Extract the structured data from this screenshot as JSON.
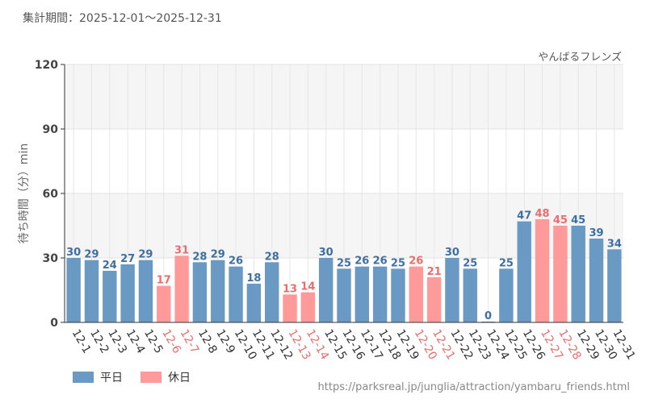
{
  "header": {
    "period": "集計期間：2025-12-01～2025-12-31"
  },
  "footer": {
    "source": "https://parksreal.jp/junglia/attraction/yambaru_friends.html"
  },
  "colors": {
    "weekday": "#6a9ac4",
    "holiday": "#ff9a9a",
    "weekday_label": "#3f6f9f",
    "holiday_label": "#e76e6e"
  },
  "chart_data": {
    "type": "bar",
    "title": "やんばるフレンズ",
    "xlabel": "",
    "ylabel": "待ち時間（分）min",
    "ylim": [
      0,
      120
    ],
    "yticks": [
      0,
      30,
      60,
      90,
      120
    ],
    "grid": true,
    "legend_position": "bottom-left",
    "legend": [
      {
        "name": "平日",
        "key": "weekday"
      },
      {
        "name": "休日",
        "key": "holiday"
      }
    ],
    "categories": [
      "12-1",
      "12-2",
      "12-3",
      "12-4",
      "12-5",
      "12-6",
      "12-7",
      "12-8",
      "12-9",
      "12-10",
      "12-11",
      "12-12",
      "12-13",
      "12-14",
      "12-15",
      "12-16",
      "12-17",
      "12-18",
      "12-19",
      "12-20",
      "12-21",
      "12-22",
      "12-23",
      "12-24",
      "12-25",
      "12-26",
      "12-27",
      "12-28",
      "12-29",
      "12-30",
      "12-31"
    ],
    "values": [
      30,
      29,
      24,
      27,
      29,
      17,
      31,
      28,
      29,
      26,
      18,
      28,
      13,
      14,
      30,
      25,
      26,
      26,
      25,
      26,
      21,
      30,
      25,
      0,
      25,
      47,
      48,
      45,
      45,
      39,
      34
    ],
    "day_type": [
      "weekday",
      "weekday",
      "weekday",
      "weekday",
      "weekday",
      "holiday",
      "holiday",
      "weekday",
      "weekday",
      "weekday",
      "weekday",
      "weekday",
      "holiday",
      "holiday",
      "weekday",
      "weekday",
      "weekday",
      "weekday",
      "weekday",
      "holiday",
      "holiday",
      "weekday",
      "weekday",
      "weekday",
      "weekday",
      "weekday",
      "holiday",
      "holiday",
      "weekday",
      "weekday",
      "weekday"
    ]
  }
}
